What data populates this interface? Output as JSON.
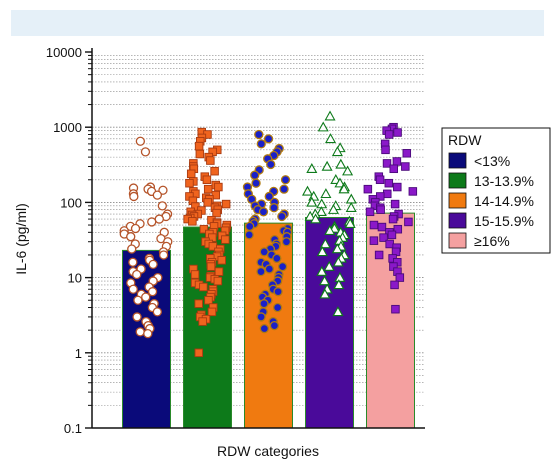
{
  "chart_data": {
    "type": "bar",
    "xlabel": "RDW categories",
    "ylabel": "IL-6 (pg/ml)",
    "yscale": "log",
    "ylim": [
      0.1,
      10000
    ],
    "yticks": [
      {
        "value": 10000,
        "label": "10000"
      },
      {
        "value": 1000,
        "label": "1000"
      },
      {
        "value": 100,
        "label": "100"
      },
      {
        "value": 10,
        "label": "10"
      },
      {
        "value": 1,
        "label": "1"
      },
      {
        "value": 0.1,
        "label": "0.1"
      }
    ],
    "grid": "horizontal dotted minor lines",
    "legend": {
      "title": "RDW",
      "placement": "right",
      "entries": [
        "<13%",
        "13-13.9%",
        "14-14.9%",
        "15-15.9%",
        "≥16%"
      ]
    },
    "categories": [
      "<13%",
      "13-13.9%",
      "14-14.9%",
      "15-15.9%",
      "≥16%"
    ],
    "values": [
      23,
      47,
      53,
      63,
      72
    ],
    "series": [
      {
        "name": "<13%",
        "bar_color": "#0a0a7a",
        "marker": "circle",
        "marker_fill": "#ffffff",
        "marker_stroke": "#b5542a",
        "points": [
          650,
          470,
          160,
          155,
          150,
          145,
          140,
          130,
          125,
          120,
          90,
          70,
          65,
          60,
          55,
          52,
          48,
          45,
          42,
          40,
          38,
          35,
          33,
          30,
          28,
          26,
          24,
          22,
          20,
          18,
          17,
          16,
          15,
          13,
          12,
          11,
          10,
          9,
          8.5,
          7.5,
          7,
          6.5,
          6,
          5.5,
          5,
          4.5,
          4,
          3.5,
          3,
          2.6,
          2.3,
          2.1,
          1.9,
          1.8
        ]
      },
      {
        "name": "13-13.9%",
        "bar_color": "#0d7a1a",
        "marker": "square",
        "marker_fill": "#f0641e",
        "marker_stroke": "#a83a10",
        "points": [
          860,
          800,
          720,
          650,
          560,
          500,
          470,
          440,
          400,
          360,
          330,
          300,
          280,
          260,
          240,
          220,
          200,
          190,
          180,
          170,
          160,
          150,
          140,
          130,
          125,
          120,
          115,
          110,
          105,
          100,
          95,
          90,
          88,
          85,
          80,
          78,
          75,
          72,
          70,
          68,
          65,
          62,
          60,
          58,
          56,
          54,
          52,
          50,
          48,
          46,
          44,
          42,
          40,
          38,
          36,
          34,
          32,
          30,
          28,
          26,
          24,
          22,
          20,
          19,
          18,
          17,
          16,
          15,
          14,
          13,
          12,
          11,
          10.5,
          10,
          9.5,
          9,
          8.5,
          8,
          7.5,
          7,
          6.5,
          6,
          5.5,
          5,
          4.5,
          4,
          3.5,
          3.2,
          3,
          2.8,
          2.6,
          1
        ]
      },
      {
        "name": "14-14.9%",
        "bar_color": "#f07a10",
        "marker": "circle",
        "marker_fill": "#1a20c8",
        "marker_stroke": "#b07a10",
        "points": [
          800,
          700,
          600,
          520,
          470,
          420,
          380,
          320,
          270,
          230,
          200,
          180,
          160,
          150,
          140,
          130,
          120,
          110,
          100,
          95,
          90,
          85,
          80,
          75,
          70,
          65,
          60,
          56,
          52,
          48,
          45,
          42,
          40,
          37,
          35,
          32,
          30,
          28,
          26,
          24,
          22,
          20,
          18,
          16,
          15,
          14,
          13,
          12,
          11,
          10,
          9,
          8,
          7,
          6.5,
          6,
          5.5,
          5,
          4.5,
          4,
          3.5,
          3,
          2.6,
          2.3,
          2.1
        ]
      },
      {
        "name": "15-15.9%",
        "bar_color": "#4a0a9a",
        "marker": "triangle",
        "marker_fill": "#ffffff",
        "marker_stroke": "#0d7a1a",
        "points": [
          1400,
          1000,
          700,
          530,
          470,
          320,
          300,
          280,
          260,
          200,
          180,
          160,
          150,
          140,
          130,
          120,
          110,
          100,
          95,
          90,
          85,
          80,
          75,
          70,
          65,
          60,
          56,
          52,
          48,
          45,
          42,
          40,
          37,
          34,
          31,
          28,
          26,
          24,
          22,
          20,
          18,
          16,
          14,
          12,
          10,
          9,
          8,
          7,
          6,
          3.5
        ]
      },
      {
        "name": "≥16%",
        "bar_color": "#f4a0a0",
        "marker": "square",
        "marker_fill": "#8a18c8",
        "marker_stroke": "#4a0a7a",
        "points": [
          1000,
          950,
          900,
          850,
          800,
          600,
          500,
          450,
          350,
          330,
          300,
          280,
          220,
          200,
          180,
          160,
          150,
          140,
          130,
          120,
          110,
          100,
          95,
          90,
          85,
          80,
          75,
          70,
          65,
          60,
          55,
          50,
          47,
          44,
          40,
          37,
          34,
          31,
          28,
          25,
          22,
          20,
          18,
          16,
          14,
          12,
          10,
          8,
          3.8
        ]
      }
    ]
  }
}
